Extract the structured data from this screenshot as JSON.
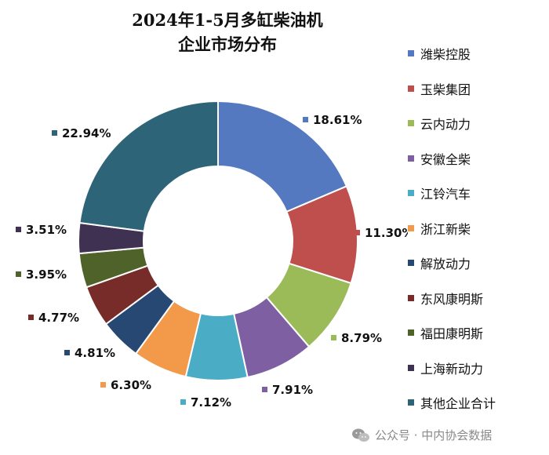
{
  "chart_data": {
    "type": "pie",
    "donut": true,
    "title_lines": [
      "2024年1-5月多缸柴油机",
      "企业市场分布"
    ],
    "unit": "%",
    "legend_position": "right",
    "series": [
      {
        "name": "潍柴控股",
        "value": 18.61,
        "label": "18.61%",
        "color": "#5579c1"
      },
      {
        "name": "玉柴集团",
        "value": 11.3,
        "label": "11.30%",
        "color": "#bf4f4c"
      },
      {
        "name": "云内动力",
        "value": 8.79,
        "label": "8.79%",
        "color": "#9bbb59"
      },
      {
        "name": "安徽全柴",
        "value": 7.91,
        "label": "7.91%",
        "color": "#7e5fa2"
      },
      {
        "name": "江铃汽车",
        "value": 7.12,
        "label": "7.12%",
        "color": "#4bacc6"
      },
      {
        "name": "浙江新柴",
        "value": 6.3,
        "label": "6.30%",
        "color": "#f3994a"
      },
      {
        "name": "解放动力",
        "value": 4.81,
        "label": "4.81%",
        "color": "#274872"
      },
      {
        "name": "东风康明斯",
        "value": 4.77,
        "label": "4.77%",
        "color": "#772c2a"
      },
      {
        "name": "福田康明斯",
        "value": 3.95,
        "label": "3.95%",
        "color": "#4e6229"
      },
      {
        "name": "上海新动力",
        "value": 3.51,
        "label": "3.51%",
        "color": "#3f3151"
      },
      {
        "name": "其他企业合计",
        "value": 22.94,
        "label": "22.94%",
        "color": "#2e6478"
      }
    ]
  },
  "watermark": {
    "text": "公众号 · 中内协会数据",
    "icon": "wechat-icon"
  }
}
